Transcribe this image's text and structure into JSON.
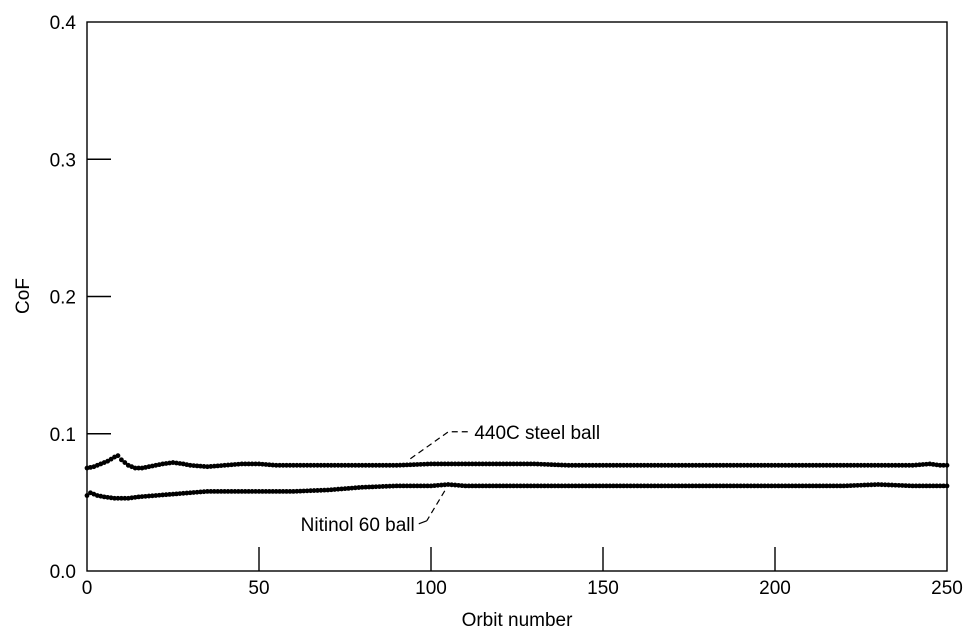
{
  "chart_data": {
    "type": "scatter",
    "xlabel": "Orbit number",
    "ylabel": "CoF",
    "xlim": [
      0,
      250
    ],
    "ylim": [
      0,
      0.4
    ],
    "xticks": [
      0,
      50,
      100,
      150,
      200,
      250
    ],
    "yticks": [
      0.0,
      0.1,
      0.2,
      0.3,
      0.4
    ],
    "xtick_labels": [
      "0",
      "50",
      "100",
      "150",
      "200",
      "250"
    ],
    "ytick_labels": [
      "0.0",
      "0.1",
      "0.2",
      "0.3",
      "0.4"
    ],
    "grid": false,
    "marker_color": "#000000",
    "series": [
      {
        "name": "440C steel ball",
        "x": [
          0,
          2,
          4,
          6,
          8,
          9,
          10,
          12,
          14,
          16,
          18,
          20,
          22,
          25,
          28,
          30,
          35,
          40,
          45,
          50,
          55,
          60,
          70,
          80,
          90,
          100,
          110,
          120,
          130,
          140,
          150,
          160,
          170,
          180,
          190,
          200,
          210,
          220,
          230,
          240,
          245,
          248,
          250
        ],
        "y": [
          0.075,
          0.076,
          0.078,
          0.08,
          0.083,
          0.084,
          0.081,
          0.077,
          0.075,
          0.075,
          0.076,
          0.077,
          0.078,
          0.079,
          0.078,
          0.077,
          0.076,
          0.077,
          0.078,
          0.078,
          0.077,
          0.077,
          0.077,
          0.077,
          0.077,
          0.078,
          0.078,
          0.078,
          0.078,
          0.077,
          0.077,
          0.077,
          0.077,
          0.077,
          0.077,
          0.077,
          0.077,
          0.077,
          0.077,
          0.077,
          0.078,
          0.077,
          0.077
        ]
      },
      {
        "name": "Nitinol 60 ball",
        "x": [
          0,
          1,
          3,
          5,
          8,
          10,
          12,
          15,
          20,
          25,
          30,
          35,
          40,
          45,
          50,
          55,
          60,
          70,
          80,
          90,
          100,
          105,
          110,
          120,
          130,
          140,
          150,
          160,
          170,
          180,
          190,
          200,
          210,
          220,
          230,
          240,
          250
        ],
        "y": [
          0.055,
          0.057,
          0.055,
          0.054,
          0.053,
          0.053,
          0.053,
          0.054,
          0.055,
          0.056,
          0.057,
          0.058,
          0.058,
          0.058,
          0.058,
          0.058,
          0.058,
          0.059,
          0.061,
          0.062,
          0.062,
          0.063,
          0.062,
          0.062,
          0.062,
          0.062,
          0.062,
          0.062,
          0.062,
          0.062,
          0.062,
          0.062,
          0.062,
          0.062,
          0.063,
          0.062,
          0.062
        ]
      }
    ],
    "annotations": [
      {
        "text": "440C steel ball",
        "series": 0,
        "at_x": 94
      },
      {
        "text": "Nitinol 60 ball",
        "series": 1,
        "at_x": 104
      }
    ]
  }
}
